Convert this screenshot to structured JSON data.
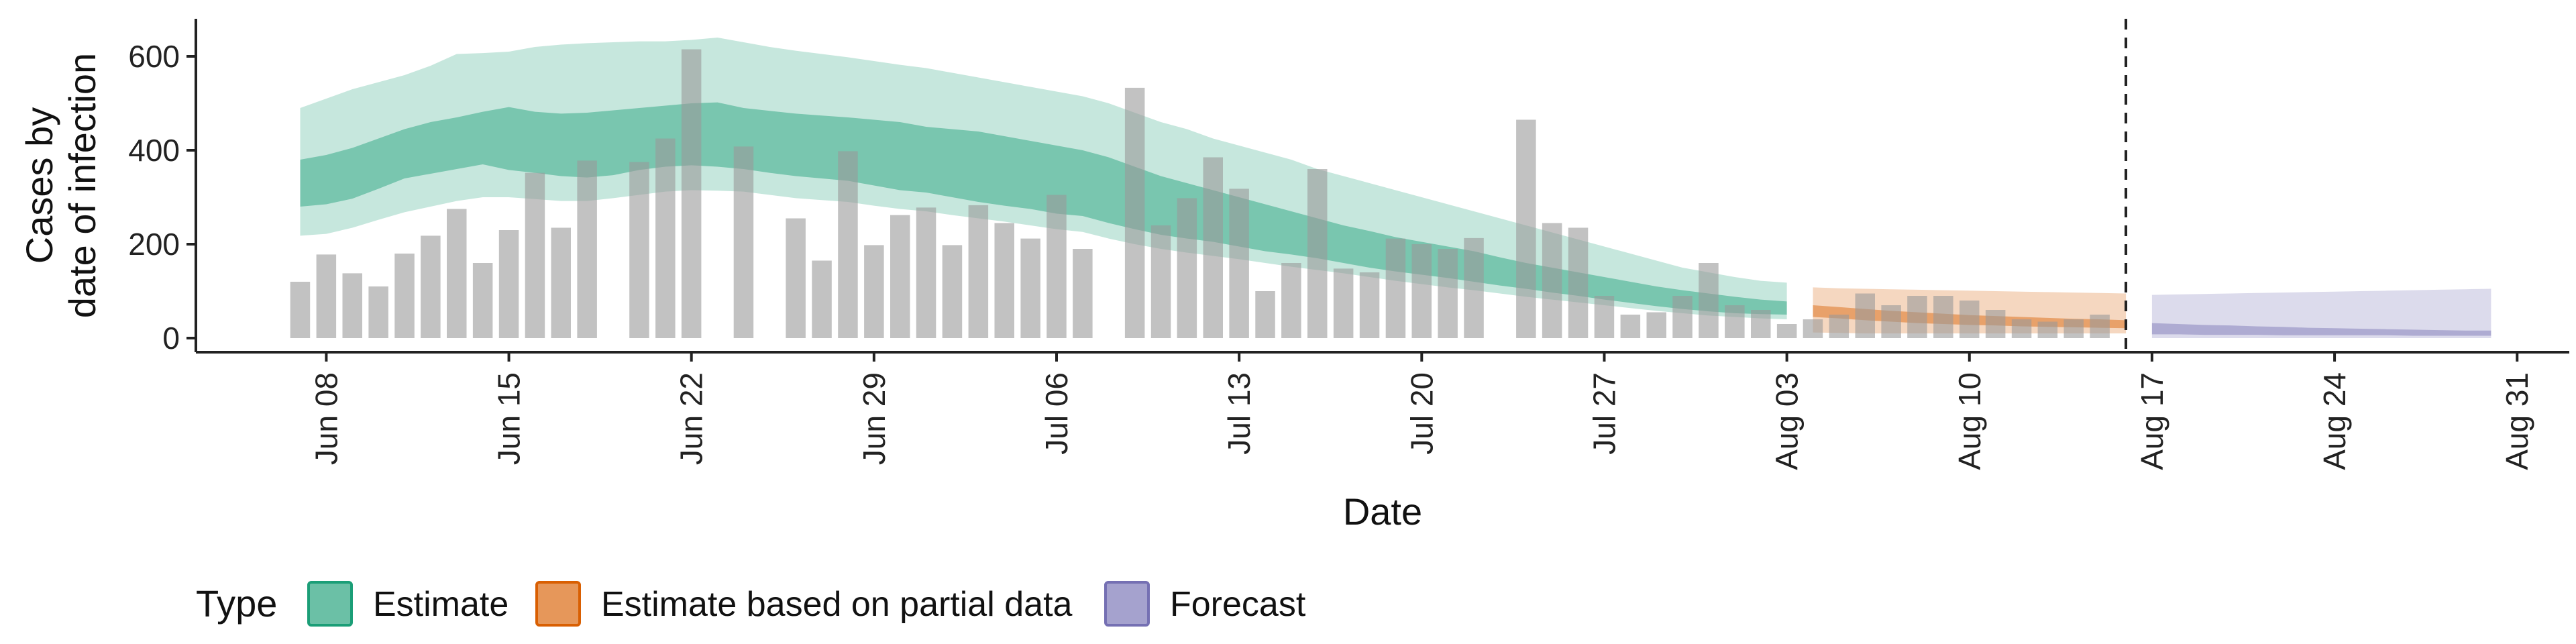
{
  "chart_data": {
    "type": "area",
    "xlabel": "Date",
    "ylabel_lines": [
      "Cases by",
      "date of infection"
    ],
    "yticks": [
      0,
      200,
      400,
      600
    ],
    "ylim": [
      -30,
      680
    ],
    "xlim": [
      "2020-06-03",
      "2020-09-02"
    ],
    "x_ticks": [
      {
        "date": "2020-06-08",
        "label": "Jun 08"
      },
      {
        "date": "2020-06-15",
        "label": "Jun 15"
      },
      {
        "date": "2020-06-22",
        "label": "Jun 22"
      },
      {
        "date": "2020-06-29",
        "label": "Jun 29"
      },
      {
        "date": "2020-07-06",
        "label": "Jul 06"
      },
      {
        "date": "2020-07-13",
        "label": "Jul 13"
      },
      {
        "date": "2020-07-20",
        "label": "Jul 20"
      },
      {
        "date": "2020-07-27",
        "label": "Jul 27"
      },
      {
        "date": "2020-08-03",
        "label": "Aug 03"
      },
      {
        "date": "2020-08-10",
        "label": "Aug 10"
      },
      {
        "date": "2020-08-17",
        "label": "Aug 17"
      },
      {
        "date": "2020-08-24",
        "label": "Aug 24"
      },
      {
        "date": "2020-08-31",
        "label": "Aug 31"
      }
    ],
    "vline_date": "2020-08-16",
    "bars": {
      "start_date": "2020-06-07",
      "values": [
        120,
        178,
        138,
        110,
        180,
        218,
        275,
        160,
        230,
        352,
        235,
        378,
        0,
        375,
        425,
        615,
        0,
        408,
        0,
        255,
        165,
        398,
        198,
        262,
        278,
        198,
        283,
        245,
        212,
        305,
        190,
        0,
        533,
        240,
        298,
        385,
        318,
        100,
        160,
        360,
        148,
        140,
        212,
        200,
        190,
        213,
        0,
        465,
        245,
        235,
        90,
        50,
        55,
        90,
        160,
        70,
        60,
        30,
        40,
        50,
        95,
        70,
        90,
        90,
        80,
        60,
        40,
        35,
        40,
        50
      ]
    },
    "series": [
      {
        "name": "Estimate",
        "color": "#1b9e77",
        "start_date": "2020-06-07",
        "median_low": [
          280,
          285,
          297,
          318,
          340,
          350,
          360,
          370,
          358,
          352,
          345,
          342,
          347,
          358,
          365,
          368,
          365,
          360,
          352,
          345,
          340,
          335,
          325,
          315,
          310,
          300,
          290,
          282,
          275,
          265,
          260,
          245,
          232,
          220,
          212,
          205,
          195,
          185,
          178,
          170,
          160,
          150,
          142,
          135,
          128,
          120,
          112,
          105,
          97,
          90,
          82,
          75,
          68,
          62,
          57,
          53,
          51,
          50
        ],
        "median_high": [
          380,
          390,
          405,
          425,
          445,
          460,
          470,
          482,
          492,
          482,
          478,
          480,
          485,
          490,
          495,
          500,
          502,
          490,
          484,
          478,
          474,
          470,
          465,
          460,
          450,
          445,
          440,
          430,
          420,
          410,
          400,
          385,
          365,
          345,
          330,
          315,
          300,
          285,
          270,
          255,
          240,
          228,
          215,
          205,
          195,
          185,
          172,
          160,
          150,
          140,
          130,
          120,
          110,
          102,
          95,
          88,
          82,
          78
        ],
        "outer_low": [
          218,
          222,
          235,
          252,
          268,
          280,
          292,
          300,
          300,
          296,
          292,
          292,
          298,
          305,
          312,
          315,
          314,
          312,
          305,
          298,
          294,
          290,
          282,
          275,
          270,
          262,
          255,
          248,
          240,
          232,
          226,
          212,
          200,
          190,
          182,
          175,
          168,
          160,
          152,
          145,
          138,
          130,
          122,
          115,
          108,
          102,
          95,
          88,
          82,
          76,
          70,
          64,
          58,
          53,
          48,
          45,
          42,
          40
        ],
        "outer_high": [
          490,
          510,
          530,
          545,
          560,
          580,
          605,
          607,
          610,
          620,
          625,
          628,
          630,
          632,
          632,
          635,
          640,
          630,
          620,
          612,
          605,
          598,
          590,
          582,
          575,
          565,
          555,
          545,
          535,
          525,
          515,
          500,
          480,
          460,
          445,
          425,
          410,
          395,
          380,
          360,
          345,
          330,
          315,
          300,
          285,
          270,
          255,
          240,
          225,
          210,
          195,
          180,
          165,
          150,
          140,
          130,
          122,
          118
        ]
      },
      {
        "name": "Estimate based on partial data",
        "color": "#d95f02",
        "start_date": "2020-08-04",
        "median_low": [
          45,
          42,
          38,
          35,
          32,
          30,
          28,
          27,
          25,
          24,
          23,
          22,
          21
        ],
        "median_high": [
          70,
          66,
          62,
          58,
          55,
          52,
          49,
          47,
          45,
          43,
          41,
          40,
          38
        ],
        "outer_low": [
          12,
          11,
          10,
          10,
          10,
          10,
          10,
          10,
          10,
          10,
          10,
          10,
          10
        ],
        "outer_high": [
          108,
          106,
          105,
          104,
          103,
          102,
          101,
          100,
          99,
          98,
          97,
          96,
          95
        ]
      },
      {
        "name": "Forecast",
        "color": "#7570b3",
        "start_date": "2020-08-17",
        "median_low": [
          8,
          8,
          7,
          7,
          7,
          6,
          6,
          6,
          6,
          6,
          5,
          5,
          5,
          5
        ],
        "median_high": [
          32,
          30,
          28,
          27,
          25,
          24,
          22,
          21,
          20,
          19,
          18,
          17,
          16,
          16
        ],
        "outer_low": [
          0,
          0,
          0,
          0,
          0,
          0,
          0,
          0,
          0,
          0,
          0,
          0,
          0,
          0
        ],
        "outer_high": [
          92,
          93,
          94,
          95,
          96,
          97,
          98,
          99,
          100,
          101,
          102,
          103,
          104,
          105
        ]
      }
    ],
    "legend": {
      "title": "Type",
      "position": "bottom",
      "items": [
        {
          "label": "Estimate",
          "color": "#1b9e77"
        },
        {
          "label": "Estimate based on partial data",
          "color": "#d95f02"
        },
        {
          "label": "Forecast",
          "color": "#7570b3"
        }
      ]
    },
    "grid": false
  }
}
